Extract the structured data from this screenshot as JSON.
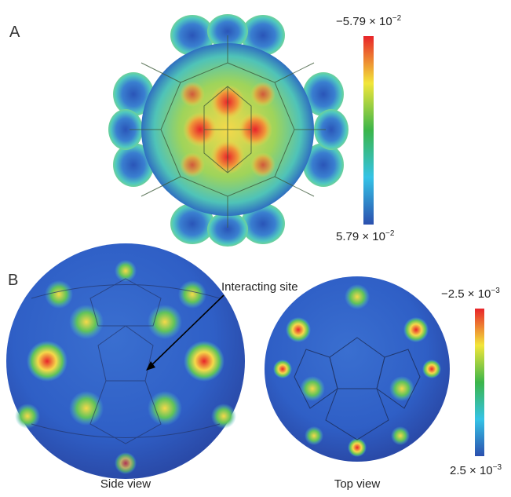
{
  "panels": {
    "a": {
      "label": "A",
      "scale_top": {
        "mantissa": "−5.79 × 10",
        "exponent": "−2"
      },
      "scale_bottom": {
        "mantissa": "5.79 × 10",
        "exponent": "−2"
      }
    },
    "b": {
      "label": "B",
      "callout": "Interacting site",
      "side_caption": "Side view",
      "top_caption": "Top view",
      "scale_top": {
        "mantissa": "−2.5 × 10",
        "exponent": "−3"
      },
      "scale_bottom": {
        "mantissa": "2.5 × 10",
        "exponent": "−3"
      }
    }
  },
  "colors": {
    "negative": "#e8242a",
    "mid_yellow": "#f2e63a",
    "mid_green": "#3bb54a",
    "mid_cyan": "#35c3e6",
    "positive": "#2b4fae"
  }
}
